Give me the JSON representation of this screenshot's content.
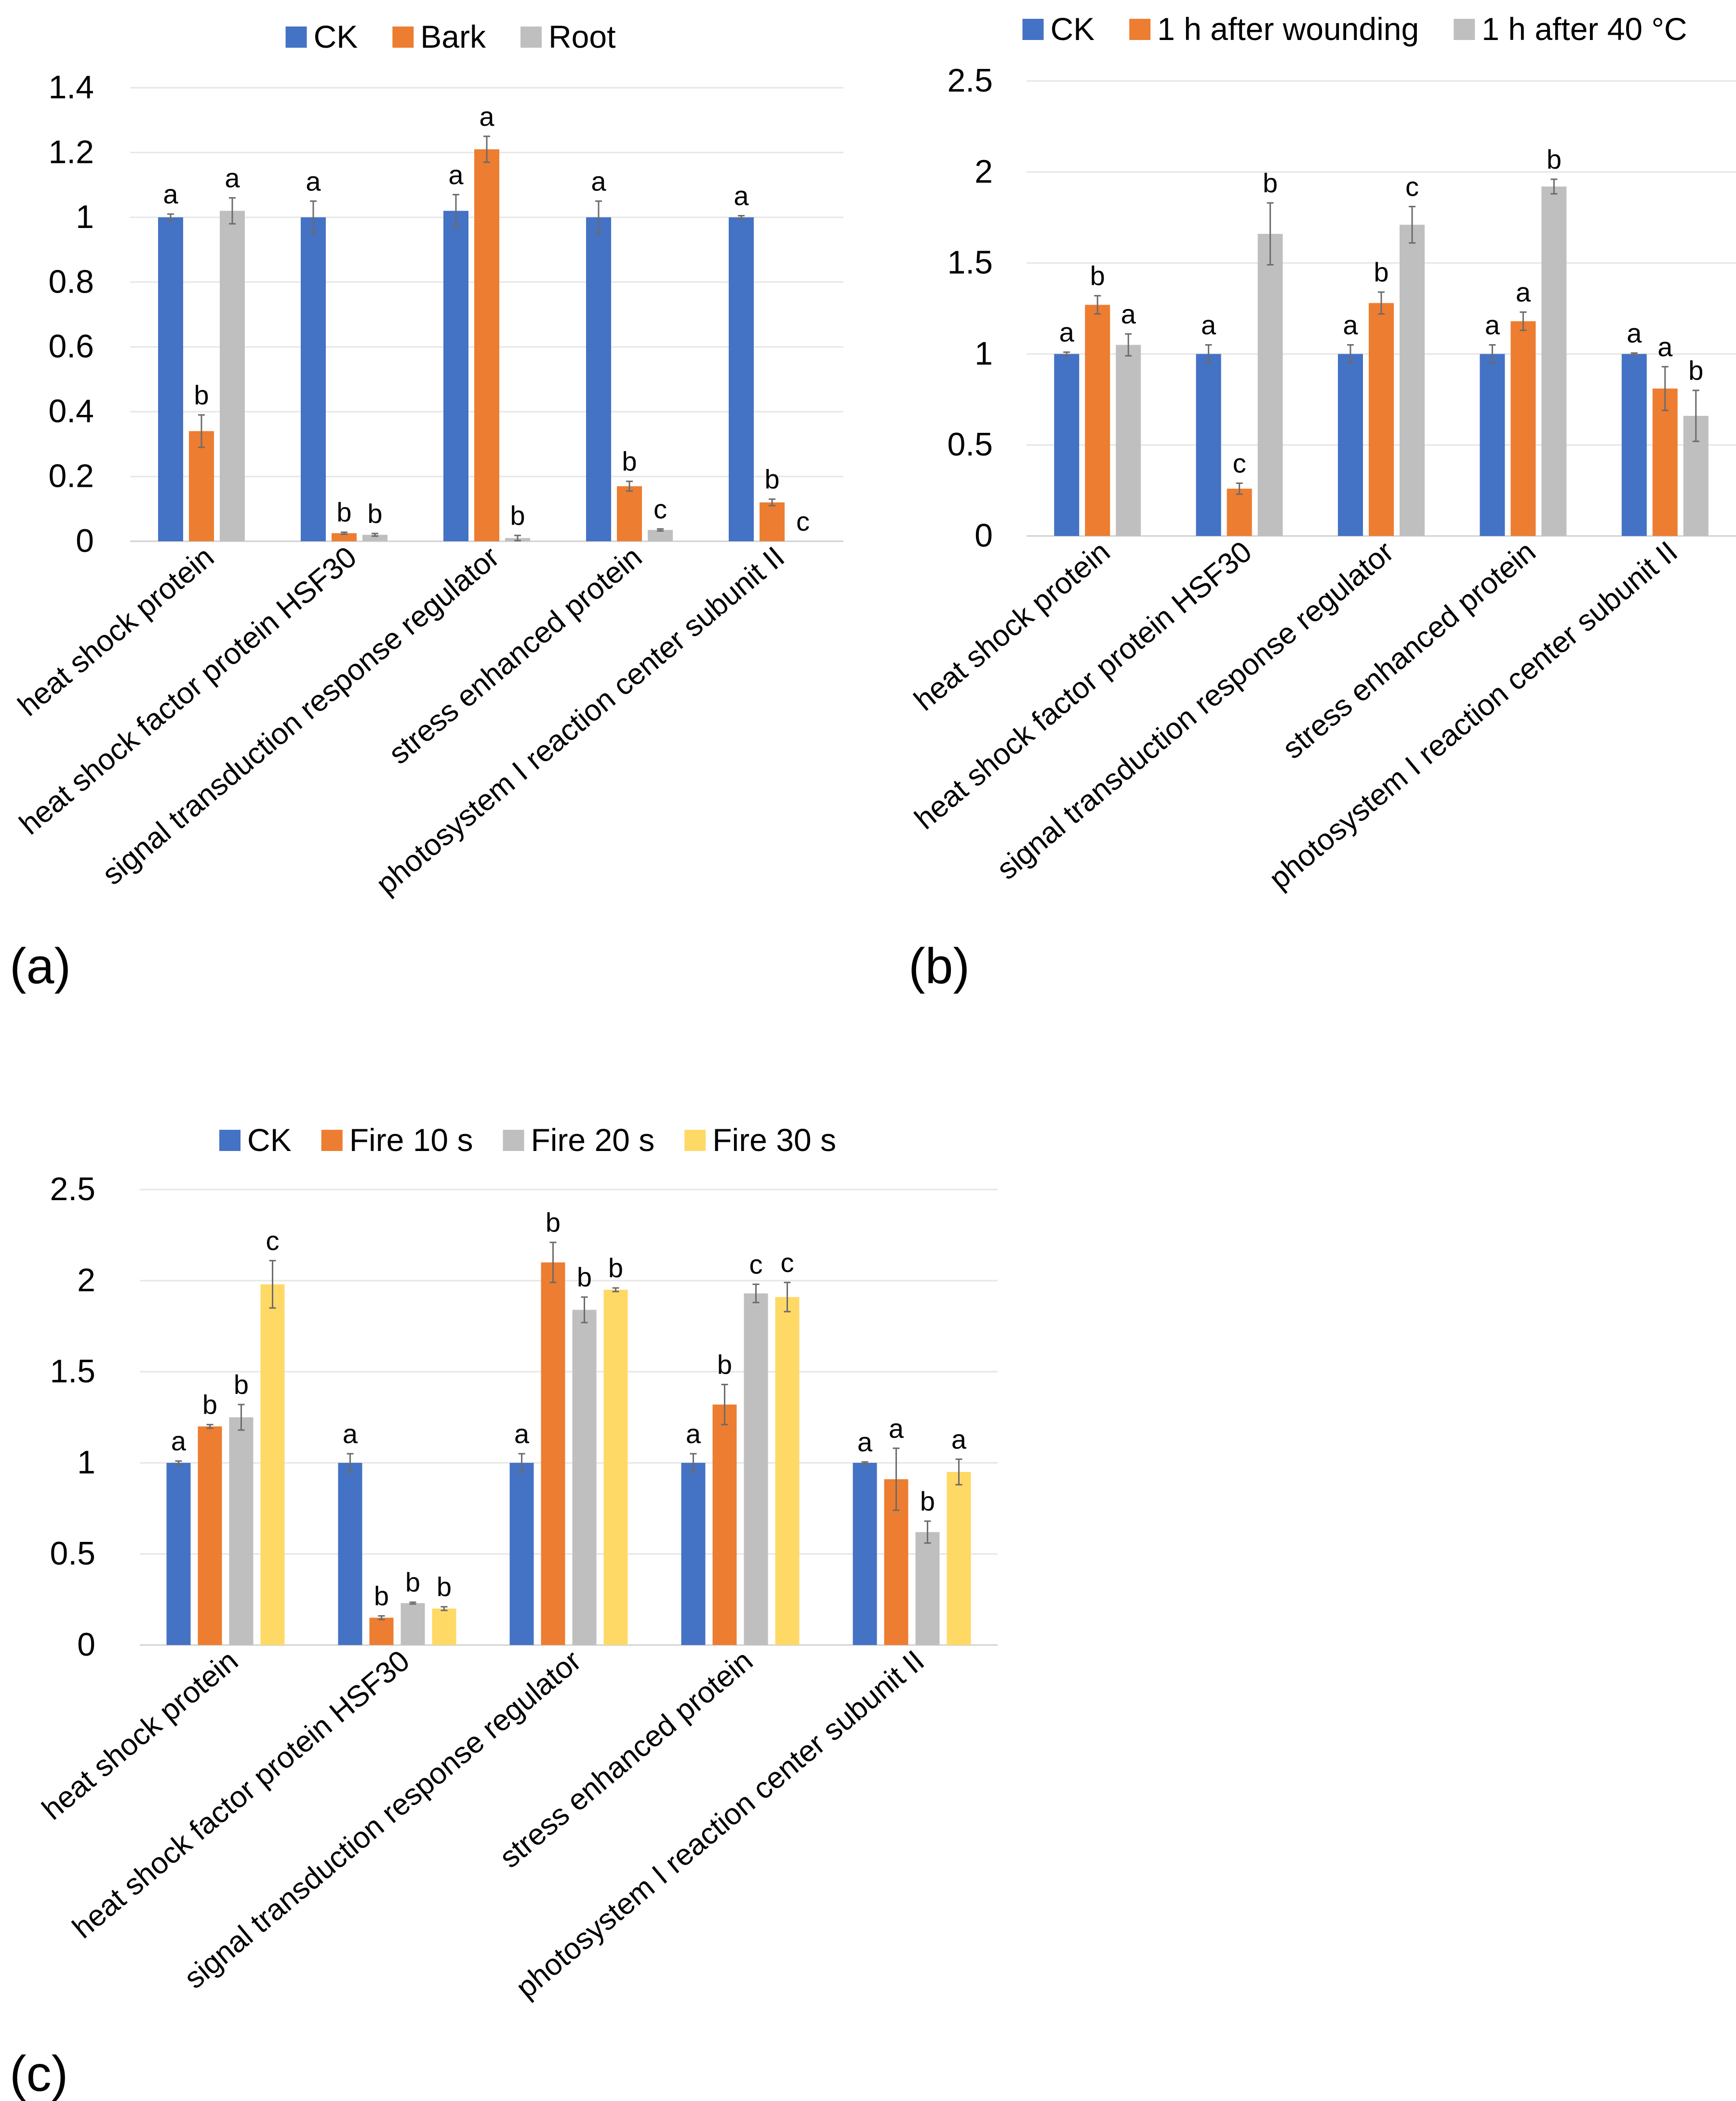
{
  "chart_data": [
    {
      "type": "bar",
      "panel_label": "(a)",
      "categories": [
        "heat shock protein",
        "heat shock factor protein HSF30",
        "signal transduction response regulator",
        "stress enhanced protein",
        "photosystem I reaction center subunit II"
      ],
      "series": [
        {
          "name": "CK",
          "color": "#4472C4",
          "values": [
            1.0,
            1.0,
            1.02,
            1.0,
            1.0
          ],
          "errors": [
            0.01,
            0.05,
            0.05,
            0.05,
            0.005
          ],
          "letters": [
            "a",
            "a",
            "a",
            "a",
            "a"
          ]
        },
        {
          "name": "Bark",
          "color": "#ED7D31",
          "values": [
            0.34,
            0.025,
            1.21,
            0.17,
            0.12
          ],
          "errors": [
            0.05,
            0.003,
            0.04,
            0.015,
            0.01
          ],
          "letters": [
            "b",
            "b",
            "a",
            "b",
            "b"
          ]
        },
        {
          "name": "Root",
          "color": "#BFBFBF",
          "values": [
            1.02,
            0.02,
            0.01,
            0.035,
            0.0
          ],
          "errors": [
            0.04,
            0.004,
            0.008,
            0.003,
            0.0
          ],
          "letters": [
            "a",
            "b",
            "b",
            "c",
            "c"
          ]
        }
      ],
      "ylim": [
        0,
        1.4
      ],
      "yticks": [
        0,
        0.2,
        0.4,
        0.6,
        0.8,
        1,
        1.2,
        1.4
      ],
      "ytick_labels": [
        "0",
        "0.2",
        "0.4",
        "0.6",
        "0.8",
        "1",
        "1.2",
        "1.4"
      ],
      "legend_position": "top-center",
      "grid": true
    },
    {
      "type": "bar",
      "panel_label": "(b)",
      "categories": [
        "heat shock protein",
        "heat shock factor protein HSF30",
        "signal transduction response regulator",
        "stress enhanced protein",
        "photosystem I reaction center subunit II"
      ],
      "series": [
        {
          "name": "CK",
          "color": "#4472C4",
          "values": [
            1.0,
            1.0,
            1.0,
            1.0,
            1.0
          ],
          "errors": [
            0.01,
            0.05,
            0.05,
            0.05,
            0.005
          ],
          "letters": [
            "a",
            "a",
            "a",
            "a",
            "a"
          ]
        },
        {
          "name": "1 h after wounding",
          "color": "#ED7D31",
          "values": [
            1.27,
            0.26,
            1.28,
            1.18,
            0.81
          ],
          "errors": [
            0.05,
            0.03,
            0.06,
            0.05,
            0.12
          ],
          "letters": [
            "b",
            "c",
            "b",
            "a",
            "a"
          ]
        },
        {
          "name": "1 h after 40 °C",
          "color": "#BFBFBF",
          "values": [
            1.05,
            1.66,
            1.71,
            1.92,
            0.66
          ],
          "errors": [
            0.06,
            0.17,
            0.1,
            0.04,
            0.14
          ],
          "letters": [
            "a",
            "b",
            "c",
            "b",
            "b"
          ]
        }
      ],
      "ylim": [
        0,
        2.5
      ],
      "yticks": [
        0,
        0.5,
        1,
        1.5,
        2,
        2.5
      ],
      "ytick_labels": [
        "0",
        "0.5",
        "1",
        "1.5",
        "2",
        "2.5"
      ],
      "legend_position": "top-center",
      "grid": true
    },
    {
      "type": "bar",
      "panel_label": "(c)",
      "categories": [
        "heat shock protein",
        "heat shock factor protein HSF30",
        "signal transduction response regulator",
        "stress enhanced protein",
        "photosystem I reaction center subunit II"
      ],
      "series": [
        {
          "name": "CK",
          "color": "#4472C4",
          "values": [
            1.0,
            1.0,
            1.0,
            1.0,
            1.0
          ],
          "errors": [
            0.01,
            0.05,
            0.05,
            0.05,
            0.005
          ],
          "letters": [
            "a",
            "a",
            "a",
            "a",
            "a"
          ]
        },
        {
          "name": "Fire 10 s",
          "color": "#ED7D31",
          "values": [
            1.2,
            0.15,
            2.1,
            1.32,
            0.91
          ],
          "errors": [
            0.01,
            0.01,
            0.11,
            0.11,
            0.17
          ],
          "letters": [
            "b",
            "b",
            "b",
            "b",
            "a"
          ]
        },
        {
          "name": "Fire 20 s",
          "color": "#BFBFBF",
          "values": [
            1.25,
            0.23,
            1.84,
            1.93,
            0.62
          ],
          "errors": [
            0.07,
            0.005,
            0.07,
            0.05,
            0.06
          ],
          "letters": [
            "b",
            "b",
            "b",
            "c",
            "b"
          ]
        },
        {
          "name": "Fire 30 s",
          "color": "#FFD966",
          "values": [
            1.98,
            0.2,
            1.95,
            1.91,
            0.95
          ],
          "errors": [
            0.13,
            0.01,
            0.01,
            0.08,
            0.07
          ],
          "letters": [
            "c",
            "b",
            "b",
            "c",
            "a"
          ]
        }
      ],
      "ylim": [
        0,
        2.5
      ],
      "yticks": [
        0,
        0.5,
        1,
        1.5,
        2,
        2.5
      ],
      "ytick_labels": [
        "0",
        "0.5",
        "1",
        "1.5",
        "2",
        "2.5"
      ],
      "legend_position": "top-center",
      "grid": true
    }
  ]
}
